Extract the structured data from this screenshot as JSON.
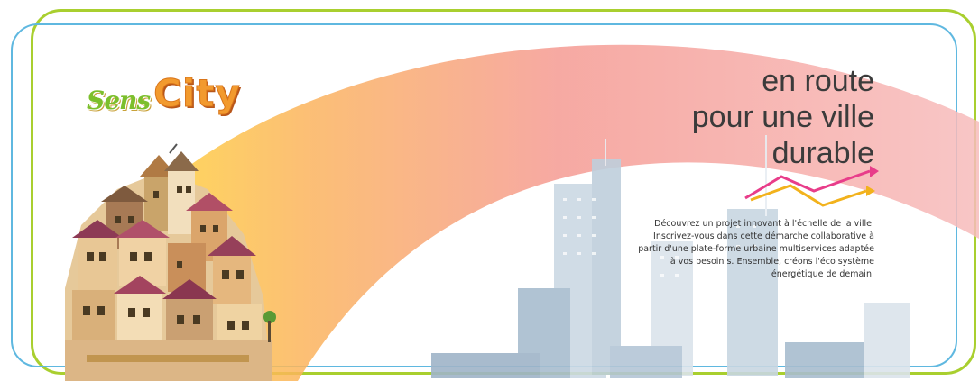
{
  "logo": {
    "part1": "Sens",
    "part2": "City"
  },
  "headline": {
    "line1": "en route",
    "line2": "pour une ville",
    "line3": "durable"
  },
  "description": {
    "lines": [
      "Découvrez un projet innovant à l'échelle de la ville.",
      "Inscrivez-vous dans cette démarche collaborative à",
      "partir d'une plate-forme urbaine multiservices adaptée",
      "à vos besoin s. Ensemble, créons l'éco système",
      "énergétique de demain."
    ]
  },
  "colors": {
    "frame_green": "#a9cf2f",
    "frame_blue": "#5fb8e0",
    "arrow_pink": "#e83d8a",
    "arrow_yellow": "#f2b21c",
    "logo_green": "#7cbf2c",
    "logo_orange": "#f29a2e"
  },
  "icons": [
    "growth-arrows-icon",
    "village-cluster-illustration",
    "city-skyline-illustration",
    "rainbow-arc-illustration"
  ]
}
